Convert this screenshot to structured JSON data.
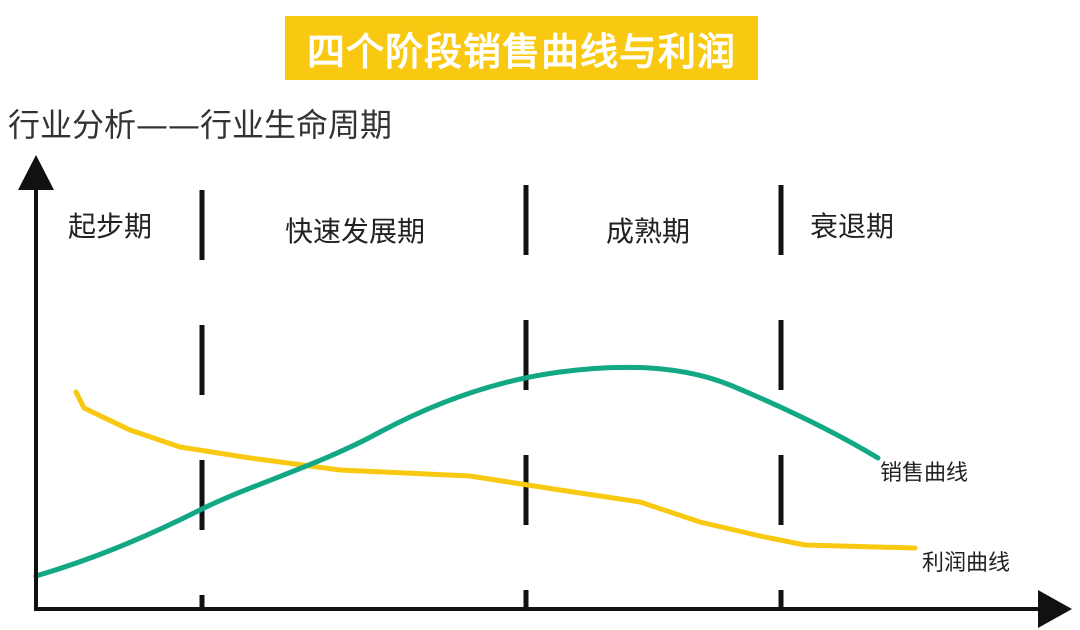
{
  "title": "四个阶段销售曲线与利润",
  "subtitle": "行业分析——行业生命周期",
  "stages": [
    "起步期",
    "快速发展期",
    "成熟期",
    "衰退期"
  ],
  "curves": {
    "sales": {
      "label": "销售曲线",
      "color": "#12A884"
    },
    "profit": {
      "label": "利润曲线",
      "color": "#F8C910"
    }
  },
  "colors": {
    "title_bg": "#F8C910",
    "axis": "#111111"
  }
}
